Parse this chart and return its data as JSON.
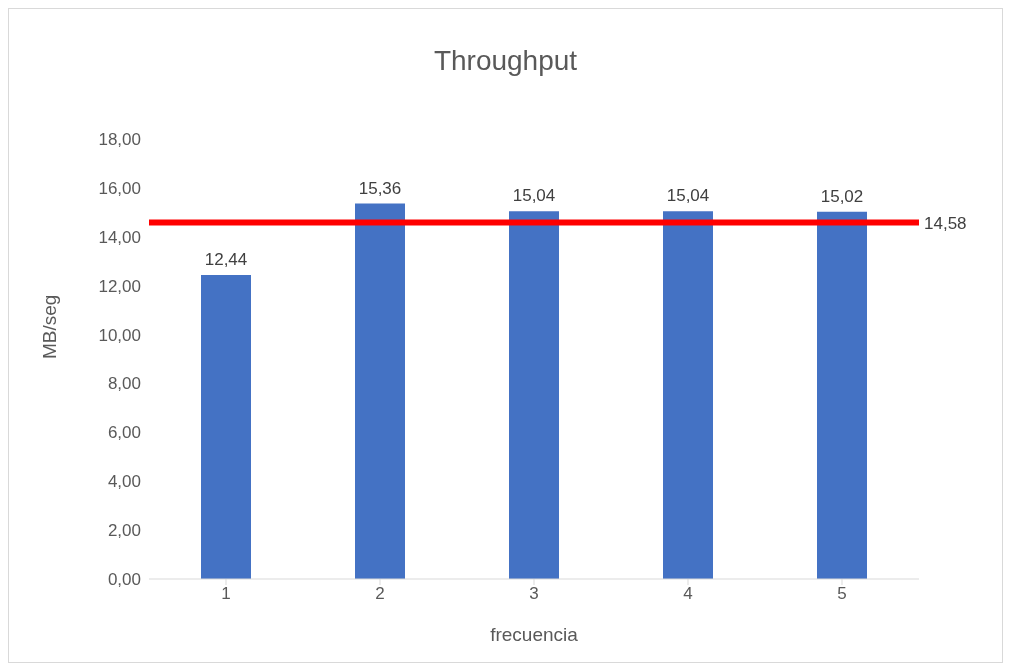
{
  "chart_data": {
    "type": "bar",
    "title": "Throughput",
    "xlabel": "frecuencia",
    "ylabel": "MB/seg",
    "categories": [
      "1",
      "2",
      "3",
      "4",
      "5"
    ],
    "values": [
      12.44,
      15.36,
      15.04,
      15.04,
      15.02
    ],
    "color": "#4472c4",
    "value_labels": [
      "12,44",
      "15,36",
      "15,04",
      "15,04",
      "15,02"
    ],
    "ylim": [
      0,
      18
    ],
    "yticks": [
      {
        "value": 0,
        "label": "0,00"
      },
      {
        "value": 2,
        "label": "2,00"
      },
      {
        "value": 4,
        "label": "4,00"
      },
      {
        "value": 6,
        "label": "6,00"
      },
      {
        "value": 8,
        "label": "8,00"
      },
      {
        "value": 10,
        "label": "10,00"
      },
      {
        "value": 12,
        "label": "12,00"
      },
      {
        "value": 14,
        "label": "14,00"
      },
      {
        "value": 16,
        "label": "16,00"
      },
      {
        "value": 18,
        "label": "18,00"
      }
    ],
    "ref_lines": [
      {
        "axis": "y",
        "value": 14.58,
        "label": "14,58",
        "color": "#ff0000"
      }
    ]
  }
}
